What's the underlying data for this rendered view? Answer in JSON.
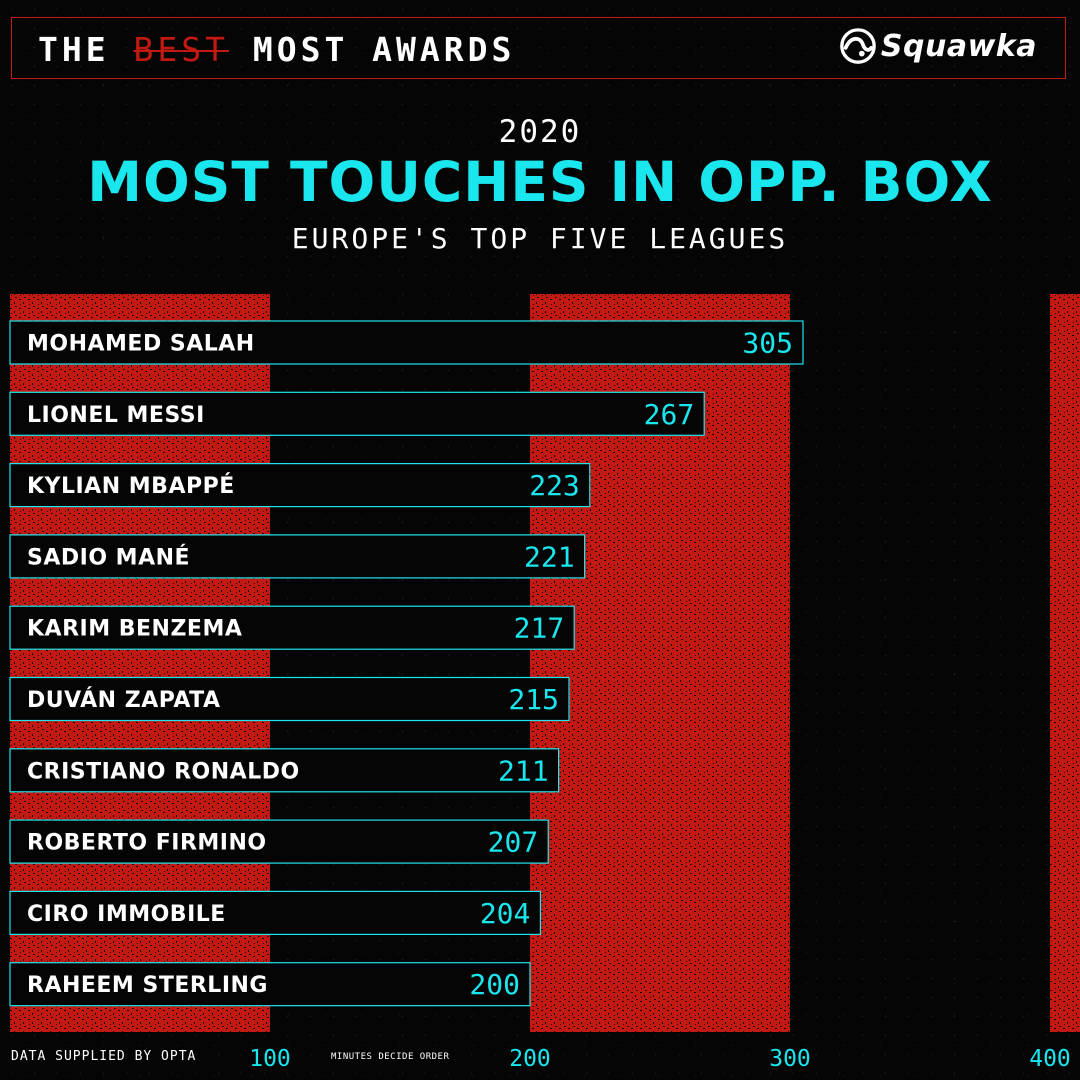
{
  "header": {
    "title_prefix": "THE ",
    "title_struck": "BEST",
    "title_suffix": " MOST AWARDS",
    "logo_text": "Squawka"
  },
  "year": "2020",
  "title": "MOST TOUCHES IN OPP. BOX",
  "subtitle": "EUROPE'S TOP FIVE LEAGUES",
  "footer": {
    "source": "DATA SUPPLIED BY OPTA",
    "note": "MINUTES DECIDE ORDER"
  },
  "colors": {
    "accent": "#1ae6ee",
    "band": "#c21a12",
    "bar_fill": "#050505",
    "background": "#050505"
  },
  "chart_data": {
    "type": "bar",
    "orientation": "horizontal",
    "categories": [
      "MOHAMED SALAH",
      "LIONEL MESSI",
      "KYLIAN MBAPPÉ",
      "SADIO MANÉ",
      "KARIM BENZEMA",
      "DUVÁN ZAPATA",
      "CRISTIANO RONALDO",
      "ROBERTO FIRMINO",
      "CIRO IMMOBILE",
      "RAHEEM STERLING"
    ],
    "values": [
      305,
      267,
      223,
      221,
      217,
      215,
      211,
      207,
      204,
      200
    ],
    "xticks": [
      "100",
      "200",
      "300",
      "400"
    ],
    "xlim": [
      0,
      400
    ],
    "grid": "alternating vertical bands"
  }
}
